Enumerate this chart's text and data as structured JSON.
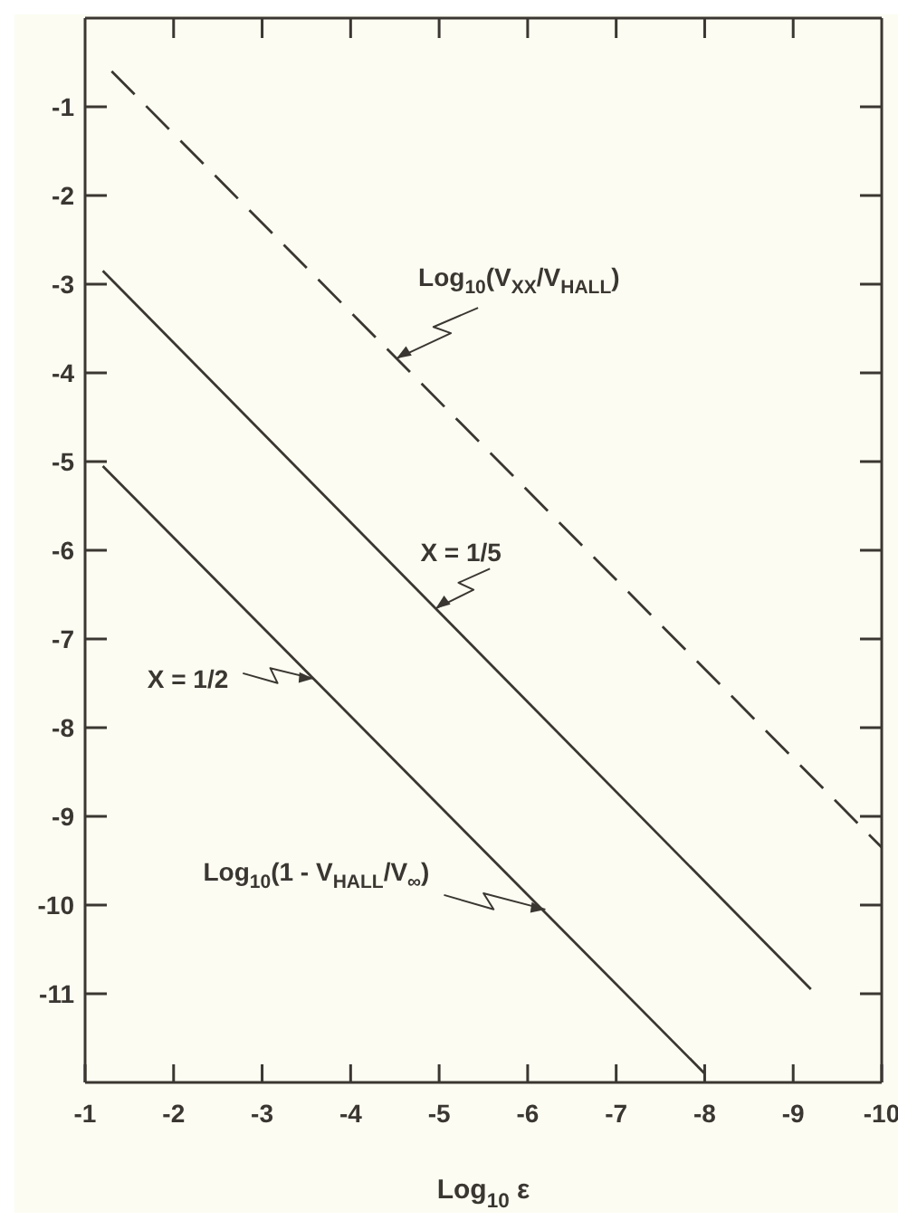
{
  "chart_data": {
    "type": "line",
    "xlabel": "Log$_{10}$ ε",
    "series": [
      {
        "name": "Log$_{10}$(V$_{XX}$/V$_{HALL}$)",
        "color": "#3a3631",
        "line_style": "dashed",
        "x": [
          -1.3,
          -10
        ],
        "values": [
          -0.6,
          -9.35
        ]
      },
      {
        "name": "X = 1/5",
        "color": "#3a3631",
        "x": [
          -1.2,
          -9.2
        ],
        "values": [
          -2.85,
          -10.95
        ]
      },
      {
        "name": "X = 1/2",
        "color": "#3a3631",
        "x": [
          -1.2,
          -8.0
        ],
        "values": [
          -5.05,
          -11.9
        ]
      }
    ],
    "annotations": [
      {
        "text": "Log$_{10}$(1 - V$_{HALL}$/V$_{∞}$)",
        "x": -6.2,
        "y": -10.05
      }
    ],
    "xlim": [
      -1,
      -10
    ],
    "xticks": [
      -1,
      -2,
      -3,
      -4,
      -5,
      -6,
      -7,
      -8,
      -9,
      -10
    ],
    "ylim": [
      -12,
      0
    ],
    "yticks": [
      -1,
      -2,
      -3,
      -4,
      -5,
      -6,
      -7,
      -8,
      -9,
      -10,
      -11
    ],
    "marker": "none",
    "line_style": "solid"
  }
}
